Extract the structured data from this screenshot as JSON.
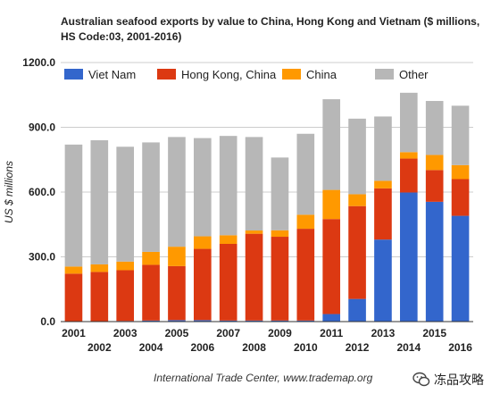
{
  "title": "Australian seafood exports by value to China, Hong Kong and Vietnam ($ millions, HS Code:03, 2001-2016)",
  "source": "International Trade Center, www.trademap.org",
  "watermark": "冻品攻略",
  "chart_data": {
    "type": "bar",
    "stacked": true,
    "title": "Australian seafood exports by value to China, Hong Kong and Vietnam ($ millions, HS Code:03, 2001-2016)",
    "ylabel": "US $ millions",
    "xlabel": "",
    "ylim": [
      0,
      1200
    ],
    "yticks": [
      0,
      300,
      600,
      900,
      1200
    ],
    "ytick_labels": [
      "0.0",
      "300.0",
      "600.0",
      "900.0",
      "1200.0"
    ],
    "grid": true,
    "legend_position": "top",
    "categories": [
      "2001",
      "2002",
      "2003",
      "2004",
      "2005",
      "2006",
      "2007",
      "2008",
      "2009",
      "2010",
      "2011",
      "2012",
      "2013",
      "2014",
      "2015",
      "2016"
    ],
    "series": [
      {
        "name": "Viet Nam",
        "color": "#3366cc",
        "values": [
          2,
          2,
          3,
          5,
          7,
          7,
          5,
          5,
          5,
          5,
          35,
          105,
          380,
          598,
          555,
          490
        ]
      },
      {
        "name": "Hong Kong, China",
        "color": "#dc3912",
        "values": [
          220,
          228,
          235,
          258,
          250,
          330,
          355,
          402,
          388,
          425,
          440,
          430,
          237,
          157,
          147,
          170
        ]
      },
      {
        "name": "China",
        "color": "#ff9900",
        "values": [
          33,
          35,
          40,
          60,
          90,
          58,
          40,
          15,
          30,
          65,
          135,
          55,
          35,
          30,
          70,
          65
        ]
      },
      {
        "name": "Other",
        "color": "#b7b7b7",
        "values": [
          565,
          575,
          532,
          507,
          508,
          455,
          460,
          433,
          337,
          375,
          420,
          350,
          298,
          275,
          250,
          275
        ]
      }
    ]
  }
}
